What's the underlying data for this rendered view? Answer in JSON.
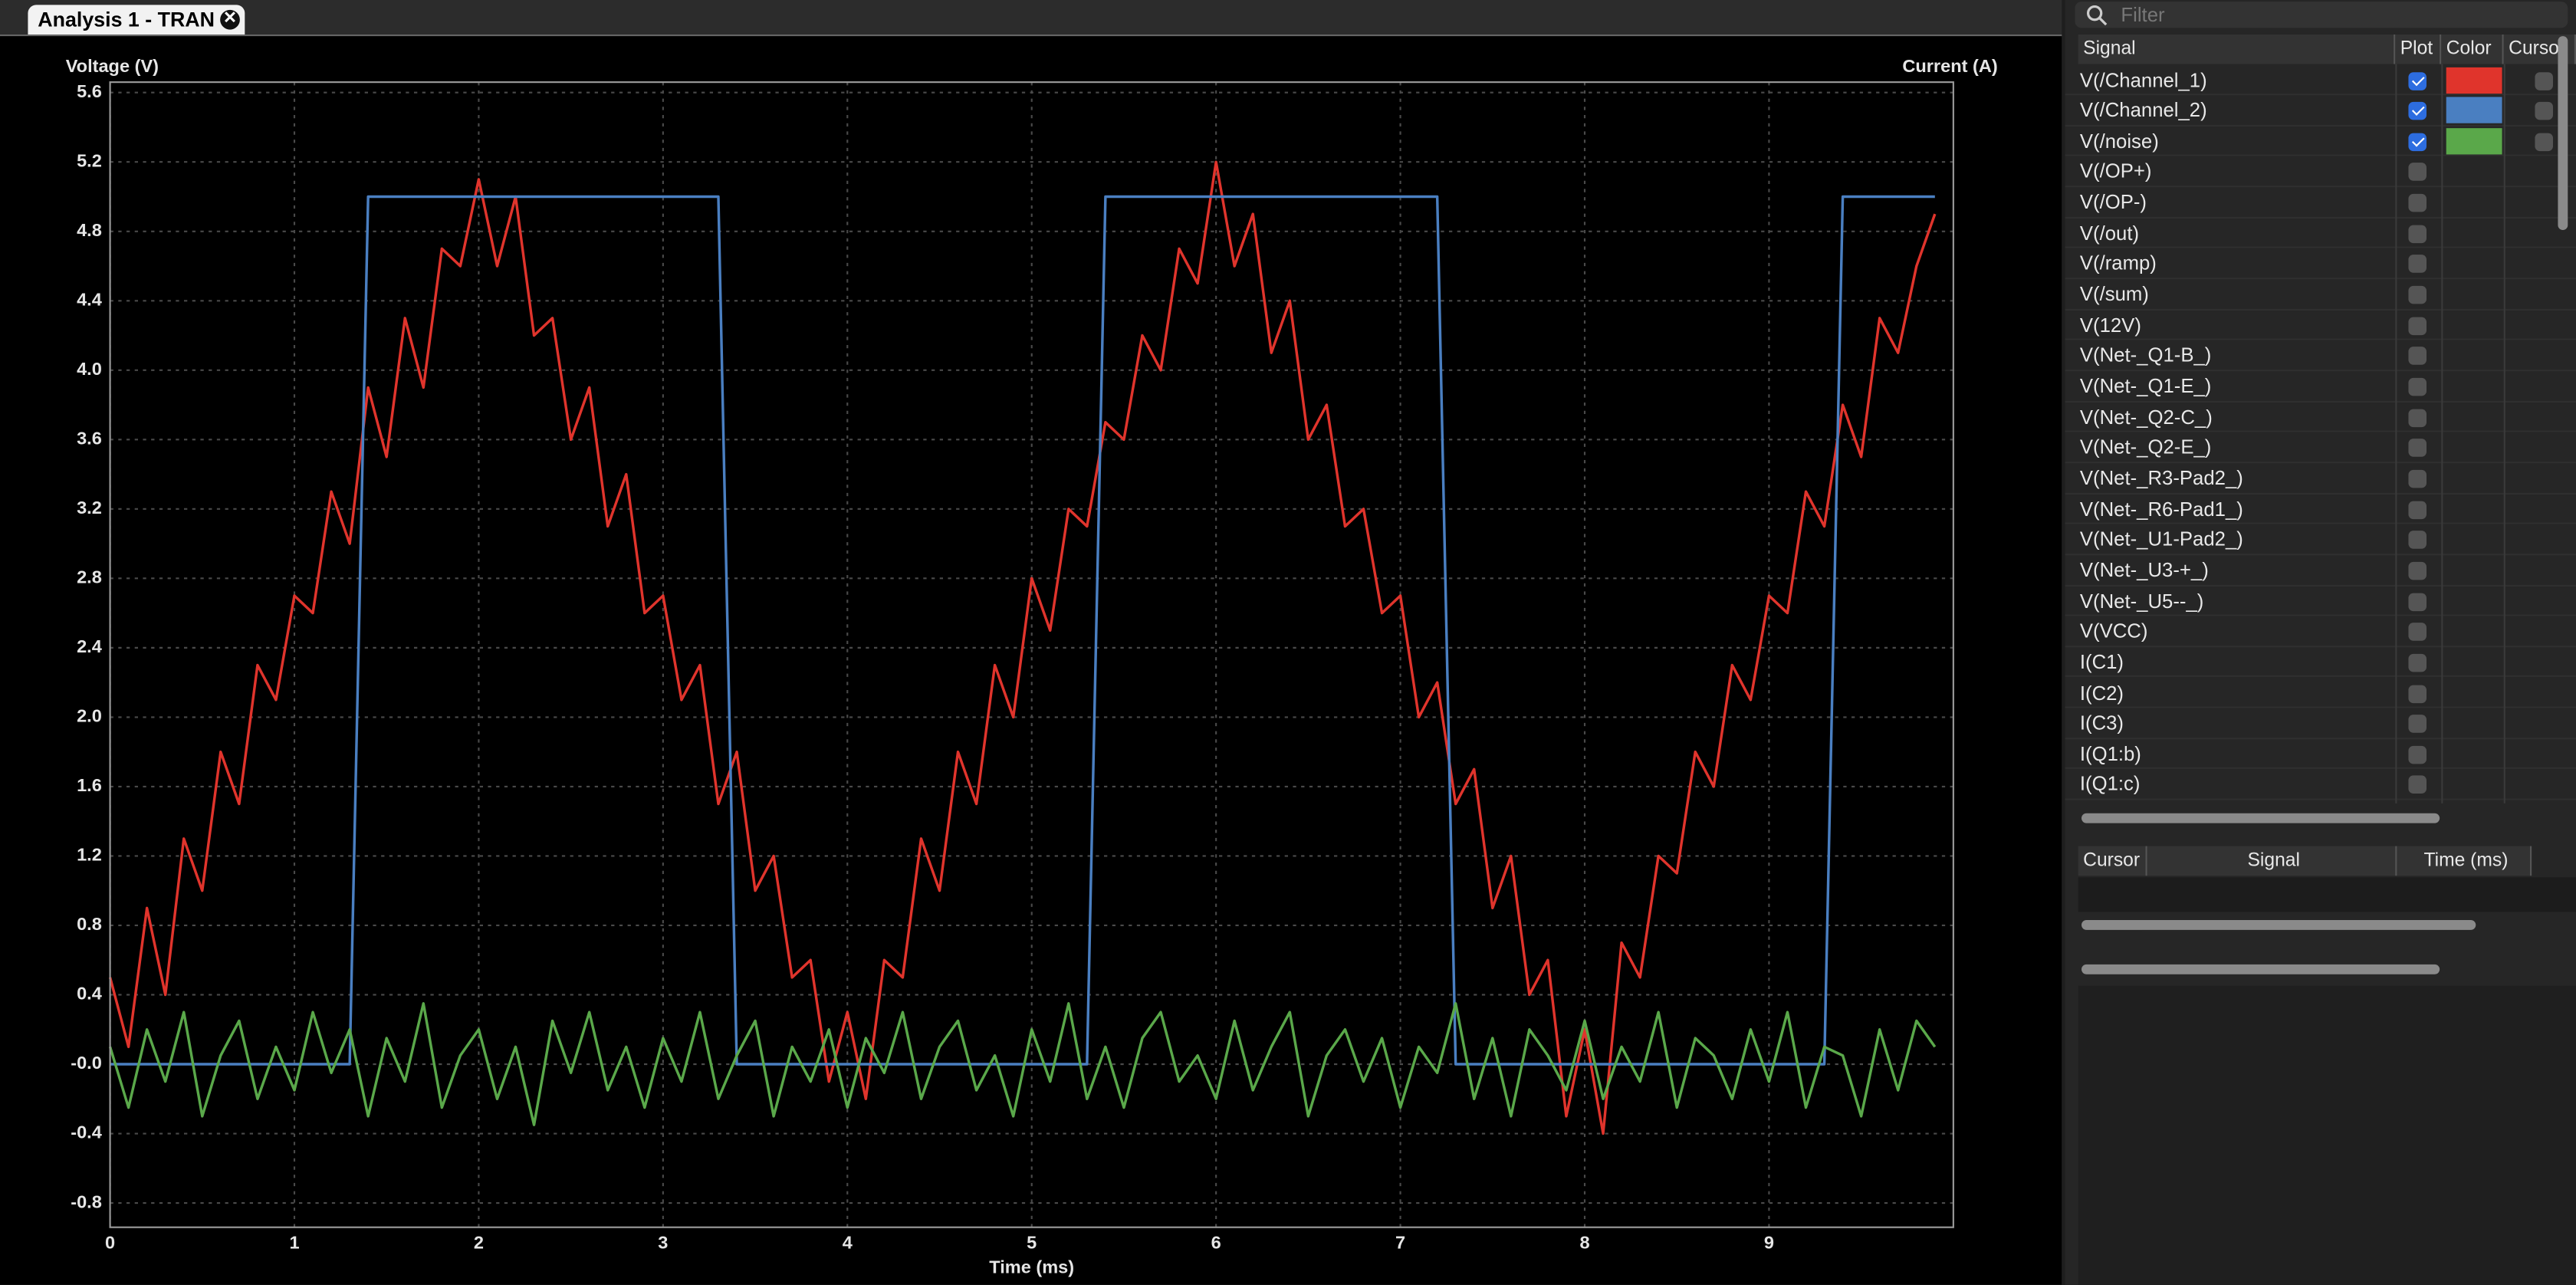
{
  "tab": {
    "title": "Analysis 1 - TRAN"
  },
  "chart_data": {
    "type": "line",
    "y_label": "Voltage (V)",
    "y2_label": "Current (A)",
    "x_label": "Time (ms)",
    "x": [
      0,
      0.1,
      0.2,
      0.3,
      0.4,
      0.5,
      0.6,
      0.7,
      0.8,
      0.9,
      1,
      1.1,
      1.2,
      1.3,
      1.4,
      1.5,
      1.6,
      1.7,
      1.8,
      1.9,
      2,
      2.1,
      2.2,
      2.3,
      2.4,
      2.5,
      2.6,
      2.7,
      2.8,
      2.9,
      3,
      3.1,
      3.2,
      3.3,
      3.4,
      3.5,
      3.6,
      3.7,
      3.8,
      3.9,
      4,
      4.1,
      4.2,
      4.3,
      4.4,
      4.5,
      4.6,
      4.7,
      4.8,
      4.9,
      5,
      5.1,
      5.2,
      5.3,
      5.4,
      5.5,
      5.6,
      5.7,
      5.8,
      5.9,
      6,
      6.1,
      6.2,
      6.3,
      6.4,
      6.5,
      6.6,
      6.7,
      6.8,
      6.9,
      7,
      7.1,
      7.2,
      7.3,
      7.4,
      7.5,
      7.6,
      7.7,
      7.8,
      7.9,
      8,
      8.1,
      8.2,
      8.3,
      8.4,
      8.5,
      8.6,
      8.7,
      8.8,
      8.9,
      9,
      9.1,
      9.2,
      9.3,
      9.4,
      9.5,
      9.6,
      9.7,
      9.8,
      9.9
    ],
    "series": [
      {
        "name": "V(/Channel_1)",
        "color": "#e0342c",
        "values": [
          0.5,
          0.1,
          0.9,
          0.4,
          1.3,
          1.0,
          1.8,
          1.5,
          2.3,
          2.1,
          2.7,
          2.6,
          3.3,
          3.0,
          3.9,
          3.5,
          4.3,
          3.9,
          4.7,
          4.6,
          5.1,
          4.6,
          5.0,
          4.2,
          4.3,
          3.6,
          3.9,
          3.1,
          3.4,
          2.6,
          2.7,
          2.1,
          2.3,
          1.5,
          1.8,
          1.0,
          1.2,
          0.5,
          0.6,
          -0.1,
          0.3,
          -0.2,
          0.6,
          0.5,
          1.3,
          1.0,
          1.8,
          1.5,
          2.3,
          2.0,
          2.8,
          2.5,
          3.2,
          3.1,
          3.7,
          3.6,
          4.2,
          4.0,
          4.7,
          4.5,
          5.2,
          4.6,
          4.9,
          4.1,
          4.4,
          3.6,
          3.8,
          3.1,
          3.2,
          2.6,
          2.7,
          2.0,
          2.2,
          1.5,
          1.7,
          0.9,
          1.2,
          0.4,
          0.6,
          -0.3,
          0.2,
          -0.4,
          0.7,
          0.5,
          1.2,
          1.1,
          1.8,
          1.6,
          2.3,
          2.1,
          2.7,
          2.6,
          3.3,
          3.1,
          3.8,
          3.5,
          4.3,
          4.1,
          4.6,
          4.9
        ]
      },
      {
        "name": "V(/Channel_2)",
        "color": "#4a7fc1",
        "values": [
          0,
          0,
          0,
          0,
          0,
          0,
          0,
          0,
          0,
          0,
          0,
          0,
          0,
          0,
          5,
          5,
          5,
          5,
          5,
          5,
          5,
          5,
          5,
          5,
          5,
          5,
          5,
          5,
          5,
          5,
          5,
          5,
          5,
          5,
          0,
          0,
          0,
          0,
          0,
          0,
          0,
          0,
          0,
          0,
          0,
          0,
          0,
          0,
          0,
          0,
          0,
          0,
          0,
          0,
          5,
          5,
          5,
          5,
          5,
          5,
          5,
          5,
          5,
          5,
          5,
          5,
          5,
          5,
          5,
          5,
          5,
          5,
          5,
          0,
          0,
          0,
          0,
          0,
          0,
          0,
          0,
          0,
          0,
          0,
          0,
          0,
          0,
          0,
          0,
          0,
          0,
          0,
          0,
          0,
          5,
          5,
          5,
          5,
          5,
          5
        ]
      },
      {
        "name": "V(/noise)",
        "color": "#5aa84a",
        "values": [
          0.1,
          -0.25,
          0.2,
          -0.1,
          0.3,
          -0.3,
          0.05,
          0.25,
          -0.2,
          0.1,
          -0.15,
          0.3,
          -0.05,
          0.2,
          -0.3,
          0.15,
          -0.1,
          0.35,
          -0.25,
          0.05,
          0.2,
          -0.2,
          0.1,
          -0.35,
          0.25,
          -0.05,
          0.3,
          -0.15,
          0.1,
          -0.25,
          0.15,
          -0.1,
          0.3,
          -0.2,
          0.05,
          0.25,
          -0.3,
          0.1,
          -0.1,
          0.2,
          -0.25,
          0.15,
          -0.05,
          0.3,
          -0.2,
          0.1,
          0.25,
          -0.15,
          0.05,
          -0.3,
          0.2,
          -0.1,
          0.35,
          -0.2,
          0.1,
          -0.25,
          0.15,
          0.3,
          -0.1,
          0.05,
          -0.2,
          0.25,
          -0.15,
          0.1,
          0.3,
          -0.3,
          0.05,
          0.2,
          -0.1,
          0.15,
          -0.25,
          0.1,
          -0.05,
          0.35,
          -0.2,
          0.15,
          -0.3,
          0.2,
          0.05,
          -0.15,
          0.25,
          -0.2,
          0.1,
          -0.1,
          0.3,
          -0.25,
          0.15,
          0.05,
          -0.2,
          0.2,
          -0.1,
          0.3,
          -0.25,
          0.1,
          0.05,
          -0.3,
          0.2,
          -0.15,
          0.25,
          0.1
        ]
      }
    ],
    "xlim": [
      0,
      10
    ],
    "ylim": [
      -0.94,
      5.66
    ],
    "xticks": [
      0,
      1,
      2,
      3,
      4,
      5,
      6,
      7,
      8,
      9
    ],
    "yticks": [
      -0.8,
      -0.4,
      {
        "value": 0,
        "label": "-0.0"
      },
      0.4,
      0.8,
      1.2,
      1.6,
      {
        "value": 2,
        "label": "2.0"
      },
      2.4,
      2.8,
      3.2,
      3.6,
      {
        "value": 4,
        "label": "4.0"
      },
      4.4,
      4.8,
      5.2,
      5.6
    ],
    "grid": true
  },
  "signal_panel": {
    "filter_placeholder": "Filter",
    "headers": [
      "Signal",
      "Plot",
      "Color",
      "Curso"
    ],
    "signals": [
      "V(/OP+)",
      "V(/OP-)",
      "V(/out)",
      "V(/ramp)",
      "V(/sum)",
      "V(12V)",
      "V(Net-_Q1-B_)",
      "V(Net-_Q1-E_)",
      "V(Net-_Q2-C_)",
      "V(Net-_Q2-E_)",
      "V(Net-_R3-Pad2_)",
      "V(Net-_R6-Pad1_)",
      "V(Net-_U1-Pad2_)",
      "V(Net-_U3-+_)",
      "V(Net-_U5--_)",
      "V(VCC)",
      "I(C1)",
      "I(C2)",
      "I(C3)",
      "I(Q1:b)",
      "I(Q1:c)"
    ]
  },
  "cursor_panel": {
    "headers": [
      "Cursor",
      "Signal",
      "Time (ms)"
    ]
  }
}
